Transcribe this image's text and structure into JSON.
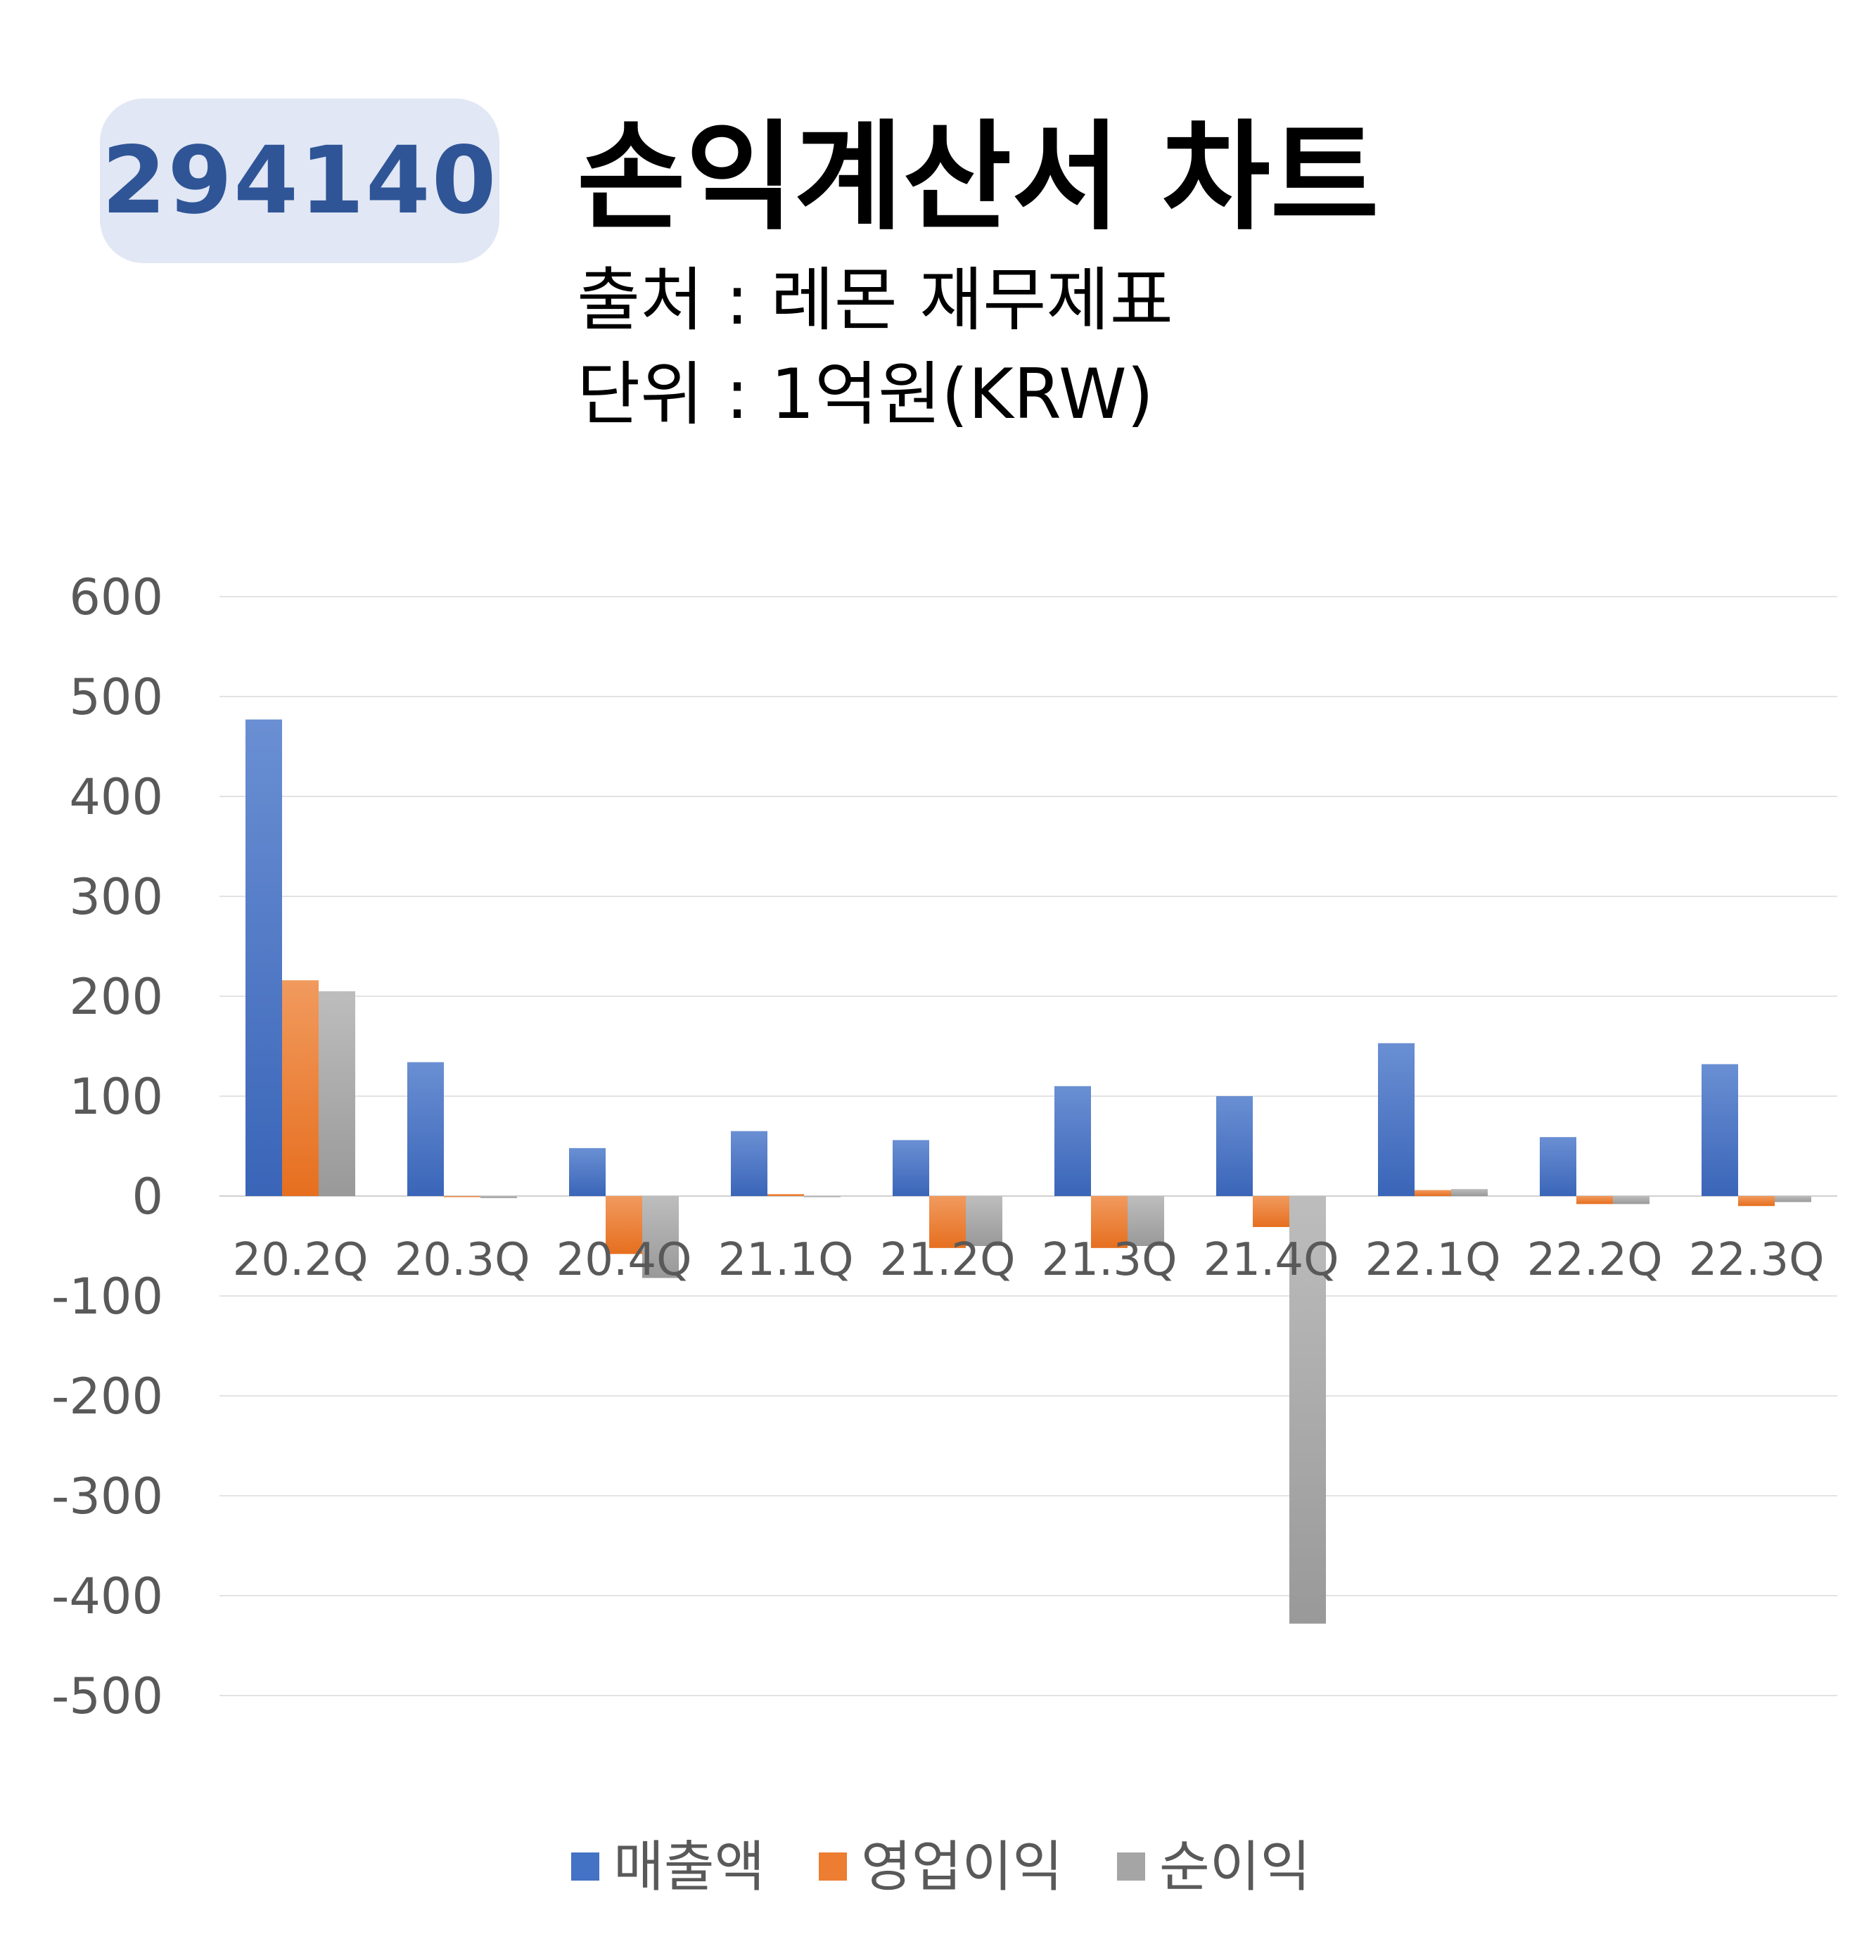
{
  "badge": {
    "code": "294140"
  },
  "header": {
    "title": "손익계산서 차트",
    "source": "출처 : 레몬 재무제표",
    "unit": "단위 : 1억원(KRW)"
  },
  "colors": {
    "revenue": "#4472c4",
    "operating": "#ed7d31",
    "net": "#a5a5a5",
    "badge_bg": "#e1e7f4",
    "badge_text": "#2f5597"
  },
  "chart_data": {
    "type": "bar",
    "title": "손익계산서 차트",
    "categories": [
      "20.2Q",
      "20.3Q",
      "20.4Q",
      "21.1Q",
      "21.2Q",
      "21.3Q",
      "21.4Q",
      "22.1Q",
      "22.2Q",
      "22.3Q"
    ],
    "series": [
      {
        "name": "매출액",
        "values": [
          477,
          134,
          48,
          65,
          56,
          110,
          100,
          153,
          59,
          132
        ]
      },
      {
        "name": "영업이익",
        "values": [
          216,
          0,
          -58,
          2,
          -52,
          -52,
          -31,
          6,
          -8,
          -10
        ]
      },
      {
        "name": "순이익",
        "values": [
          205,
          -2,
          -82,
          0,
          -50,
          -50,
          -428,
          7,
          -8,
          -6
        ]
      }
    ],
    "ylim": [
      -500,
      600
    ],
    "yticks": [
      "600",
      "500",
      "400",
      "300",
      "200",
      "100",
      "0",
      "-100",
      "-200",
      "-300",
      "-400",
      "-500"
    ],
    "grid": true,
    "legend": "bottom"
  }
}
